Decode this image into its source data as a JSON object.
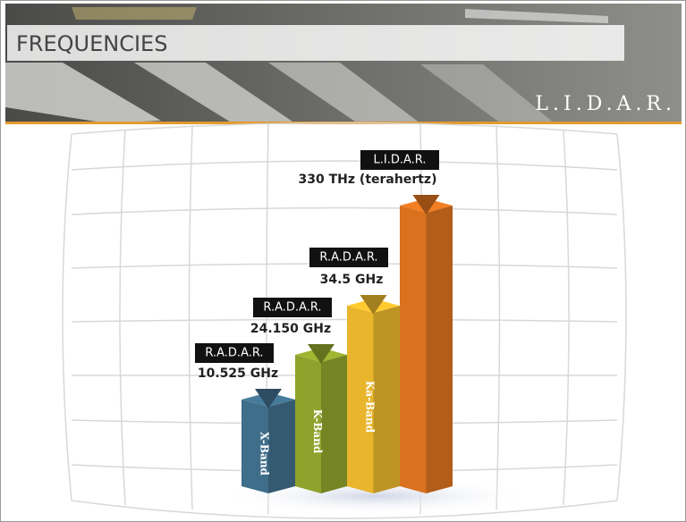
{
  "header": {
    "title": "FREQUENCIES",
    "tag": "L.I.D.A.R."
  },
  "bars": [
    {
      "technology": "R.A.D.A.R.",
      "frequency": "10.525 GHz",
      "band": "X-Band",
      "color": "#3f6e8a"
    },
    {
      "technology": "R.A.D.A.R.",
      "frequency": "24.150 GHz",
      "band": "K-Band",
      "color": "#8fa22c"
    },
    {
      "technology": "R.A.D.A.R.",
      "frequency": "34.5 GHz",
      "band": "Ka-Band",
      "color": "#e8b52c"
    },
    {
      "technology": "L.I.D.A.R.",
      "frequency": "330 THz (terahertz)",
      "band": null,
      "color": "#d9711e"
    }
  ]
}
